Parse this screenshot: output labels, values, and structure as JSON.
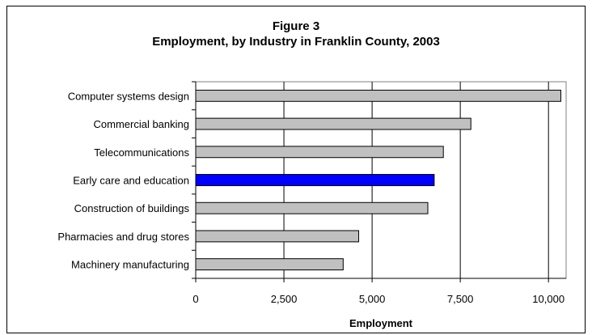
{
  "chart_data": {
    "type": "bar",
    "orientation": "horizontal",
    "title": "Figure 3",
    "subtitle": "Employment, by Industry in Franklin County, 2003",
    "xlabel": "Employment",
    "ylabel": "",
    "categories": [
      "Computer systems design",
      "Commercial banking",
      "Telecommunications",
      "Early care and education",
      "Construction of buildings",
      "Pharmacies and drug stores",
      "Machinery manufacturing"
    ],
    "values": [
      10350,
      7800,
      7020,
      6760,
      6580,
      4620,
      4180
    ],
    "highlight_category": "Early care and education",
    "xlim": [
      0,
      10500
    ],
    "xticks": [
      0,
      2500,
      5000,
      7500,
      10000
    ],
    "xtick_labels": [
      "0",
      "2,500",
      "5,000",
      "7,500",
      "10,000"
    ],
    "grid": "vertical",
    "legend": "none",
    "colors": {
      "bar": "#c0c0c0",
      "highlight": "#0000ff",
      "bar_stroke": "#000000",
      "grid": "#000000"
    }
  }
}
